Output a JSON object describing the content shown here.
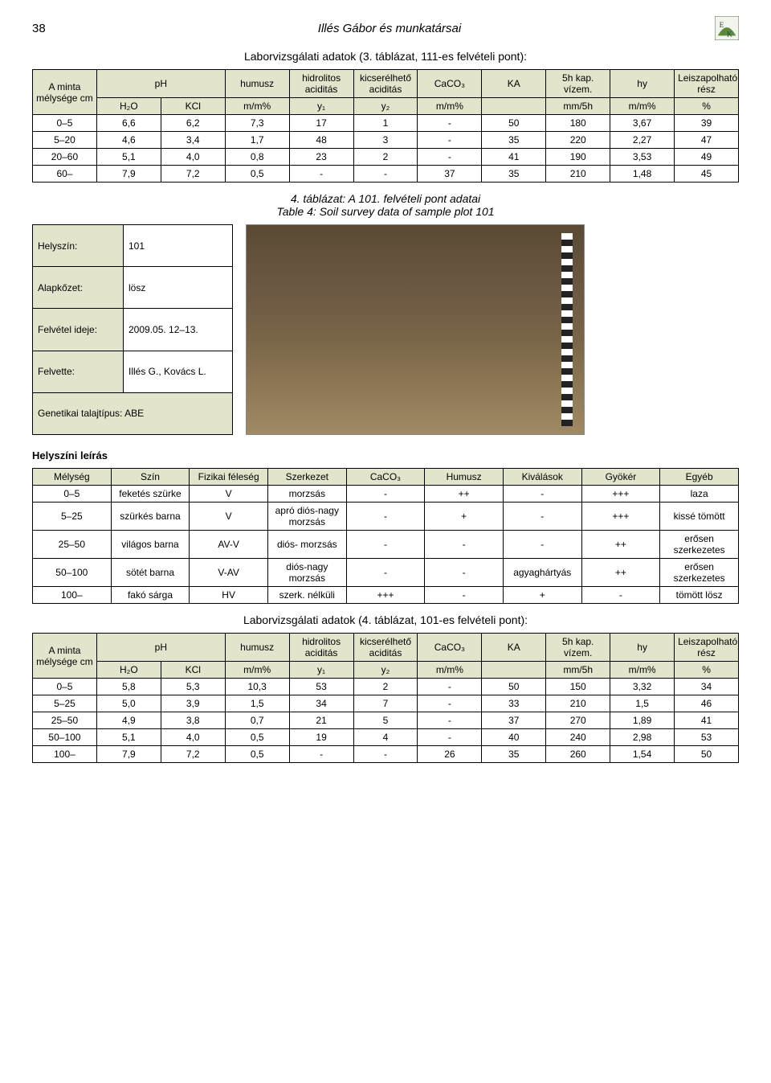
{
  "pageNumber": "38",
  "pageTitle": "Illés Gábor és munkatársai",
  "logoLetters": "EK",
  "caption1": "Laborvizsgálati adatok (3. táblázat, 111-es felvételi pont):",
  "labHeaders": {
    "c1": "A minta mélysége cm",
    "c2": "pH",
    "c3": "humusz",
    "c4": "hidrolitos aciditás",
    "c5": "kicserélhető aciditás",
    "c6": "CaCO₃",
    "c7": "KA",
    "c8": "5h kap. vízem.",
    "c9": "hy",
    "c10": "Leiszapolható rész"
  },
  "labSub": {
    "s1": "H₂O",
    "s2": "KCl",
    "s3": "m/m%",
    "s4": "y₁",
    "s5": "y₂",
    "s6": "m/m%",
    "s7": "",
    "s8": "mm/5h",
    "s9": "m/m%",
    "s10": "%"
  },
  "labRows1": [
    [
      "0–5",
      "6,6",
      "6,2",
      "7,3",
      "17",
      "1",
      "-",
      "50",
      "180",
      "3,67",
      "39"
    ],
    [
      "5–20",
      "4,6",
      "3,4",
      "1,7",
      "48",
      "3",
      "-",
      "35",
      "220",
      "2,27",
      "47"
    ],
    [
      "20–60",
      "5,1",
      "4,0",
      "0,8",
      "23",
      "2",
      "-",
      "41",
      "190",
      "3,53",
      "49"
    ],
    [
      "60–",
      "7,9",
      "7,2",
      "0,5",
      "-",
      "-",
      "37",
      "35",
      "210",
      "1,48",
      "45"
    ]
  ],
  "caption2a": "4. táblázat: A 101. felvételi pont adatai",
  "caption2b": "Table 4: Soil survey data of sample plot 101",
  "meta": {
    "r1k": "Helyszín:",
    "r1v": "101",
    "r2k": "Alapkőzet:",
    "r2v": "lösz",
    "r3k": "Felvétel ideje:",
    "r3v": "2009.05. 12–13.",
    "r4k": "Felvette:",
    "r4v": "Illés G., Kovács L.",
    "r5": "Genetikai talajtípus: ABE"
  },
  "sectionLabel": "Helyszíni leírás",
  "descHeaders": [
    "Mélység",
    "Szín",
    "Fizikai féleség",
    "Szerkezet",
    "CaCO₃",
    "Humusz",
    "Kiválások",
    "Gyökér",
    "Egyéb"
  ],
  "descRows": [
    [
      "0–5",
      "feketés szürke",
      "V",
      "morzsás",
      "-",
      "++",
      "-",
      "+++",
      "laza"
    ],
    [
      "5–25",
      "szürkés barna",
      "V",
      "apró diós-nagy morzsás",
      "-",
      "+",
      "-",
      "+++",
      "kissé tömött"
    ],
    [
      "25–50",
      "világos barna",
      "AV-V",
      "diós- morzsás",
      "-",
      "-",
      "-",
      "++",
      "erősen szerkezetes"
    ],
    [
      "50–100",
      "sötét barna",
      "V-AV",
      "diós-nagy morzsás",
      "-",
      "-",
      "agyaghártyás",
      "++",
      "erősen szerkezetes"
    ],
    [
      "100–",
      "fakó sárga",
      "HV",
      "szerk. nélküli",
      "+++",
      "-",
      "+",
      "-",
      "tömött lösz"
    ]
  ],
  "caption3": "Laborvizsgálati adatok (4. táblázat, 101-es felvételi pont):",
  "labRows2": [
    [
      "0–5",
      "5,8",
      "5,3",
      "10,3",
      "53",
      "2",
      "-",
      "50",
      "150",
      "3,32",
      "34"
    ],
    [
      "5–25",
      "5,0",
      "3,9",
      "1,5",
      "34",
      "7",
      "-",
      "33",
      "210",
      "1,5",
      "46"
    ],
    [
      "25–50",
      "4,9",
      "3,8",
      "0,7",
      "21",
      "5",
      "-",
      "37",
      "270",
      "1,89",
      "41"
    ],
    [
      "50–100",
      "5,1",
      "4,0",
      "0,5",
      "19",
      "4",
      "-",
      "40",
      "240",
      "2,98",
      "53"
    ],
    [
      "100–",
      "7,9",
      "7,2",
      "0,5",
      "-",
      "-",
      "26",
      "35",
      "260",
      "1,54",
      "50"
    ]
  ],
  "colors": {
    "headerBg": "#e3e4cc"
  }
}
